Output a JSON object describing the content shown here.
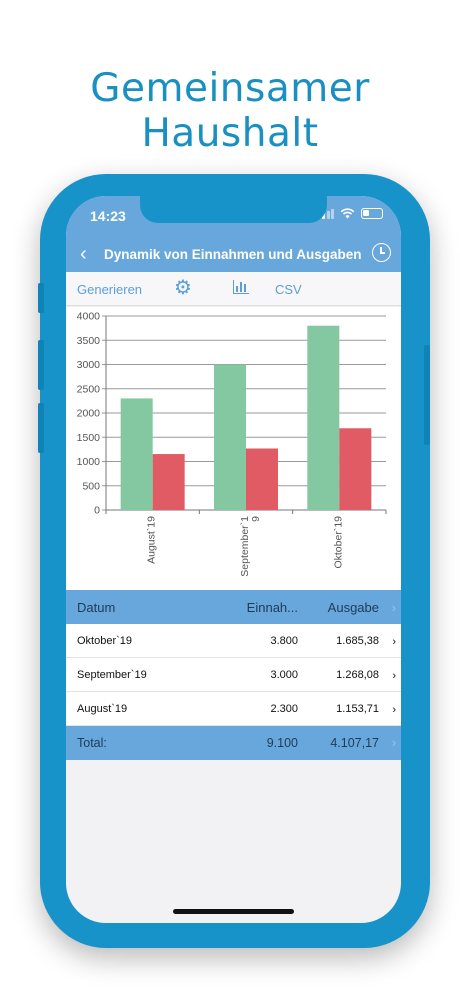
{
  "promo": {
    "title": "Gemeinsamer Haushalt"
  },
  "status": {
    "time": "14:23"
  },
  "nav": {
    "title": "Dynamik von Einnahmen und Ausgaben",
    "back_icon": "chevron-left-icon",
    "history_icon": "clock-icon"
  },
  "toolbar": {
    "generate_label": "Generieren",
    "settings_icon": "gear-icon",
    "chart_icon": "bar-chart-icon",
    "csv_label": "CSV"
  },
  "chart_data": {
    "type": "bar",
    "categories": [
      "August`19",
      "September`19",
      "Oktober`19"
    ],
    "category_labels": [
      [
        "August`19"
      ],
      [
        "September`1",
        "9"
      ],
      [
        "Oktober`19"
      ]
    ],
    "series": [
      {
        "name": "",
        "values": [
          2300,
          3000,
          3800
        ],
        "color": "#83c8a1"
      },
      {
        "name": "",
        "values": [
          1153.71,
          1268.08,
          1685.38
        ],
        "color": "#e05b63"
      }
    ],
    "ylim": [
      0,
      4000
    ],
    "yticks": [
      "0",
      "500",
      "1000",
      "1500",
      "2000",
      "2500",
      "3000",
      "3500",
      "4000"
    ],
    "grid": true,
    "title": "",
    "xlabel": "",
    "ylabel": ""
  },
  "table": {
    "headers": {
      "date": "Datum",
      "income": "Einnah...",
      "expense": "Ausgabe"
    },
    "rows": [
      {
        "date": "Oktober`19",
        "income": "3.800",
        "expense": "1.685,38"
      },
      {
        "date": "September`19",
        "income": "3.000",
        "expense": "1.268,08"
      },
      {
        "date": "August`19",
        "income": "2.300",
        "expense": "1.153,71"
      }
    ],
    "total": {
      "label": "Total:",
      "income": "9.100",
      "expense": "4.107,17"
    }
  }
}
